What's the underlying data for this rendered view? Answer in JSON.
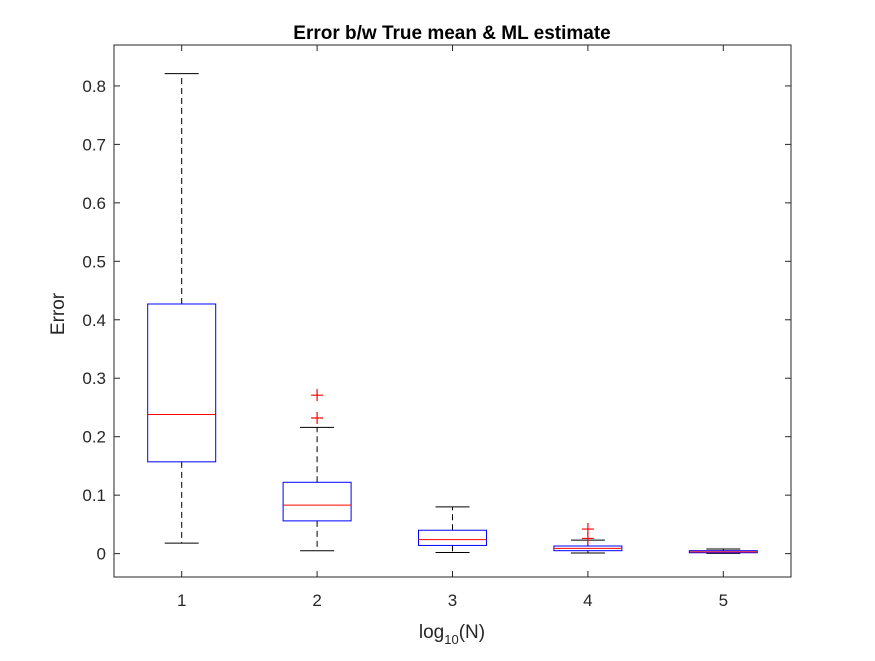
{
  "chart_data": {
    "type": "box",
    "title": "Error b/w True mean & ML estimate",
    "xlabel": {
      "base": "log",
      "subscript": "10",
      "suffix": "(N)"
    },
    "ylabel": "Error",
    "xlim": [
      0.5,
      5.5
    ],
    "ylim": [
      -0.04,
      0.87
    ],
    "yticks": [
      0,
      0.1,
      0.2,
      0.3,
      0.4,
      0.5,
      0.6,
      0.7,
      0.8
    ],
    "ytick_labels": [
      "0",
      "0.1",
      "0.2",
      "0.3",
      "0.4",
      "0.5",
      "0.6",
      "0.7",
      "0.8"
    ],
    "categories": [
      "1",
      "2",
      "3",
      "4",
      "5"
    ],
    "boxes": [
      {
        "x": 1,
        "whisker_low": 0.018,
        "q1": 0.157,
        "median": 0.238,
        "q3": 0.427,
        "whisker_high": 0.821,
        "outliers": []
      },
      {
        "x": 2,
        "whisker_low": 0.005,
        "q1": 0.056,
        "median": 0.083,
        "q3": 0.122,
        "whisker_high": 0.216,
        "outliers": [
          0.232,
          0.271
        ]
      },
      {
        "x": 3,
        "whisker_low": 0.002,
        "q1": 0.014,
        "median": 0.024,
        "q3": 0.04,
        "whisker_high": 0.08,
        "outliers": []
      },
      {
        "x": 4,
        "whisker_low": 0.001,
        "q1": 0.005,
        "median": 0.009,
        "q3": 0.013,
        "whisker_high": 0.023,
        "outliers": [
          0.026,
          0.042
        ]
      },
      {
        "x": 5,
        "whisker_low": 0.0005,
        "q1": 0.0015,
        "median": 0.003,
        "q3": 0.005,
        "whisker_high": 0.008,
        "outliers": []
      }
    ],
    "grid": false,
    "legend": "none",
    "colors": {
      "box": "#0000ff",
      "median": "#ff0000",
      "whisker": "#000000",
      "outlier": "#ff0000",
      "axes": "#262626"
    }
  }
}
